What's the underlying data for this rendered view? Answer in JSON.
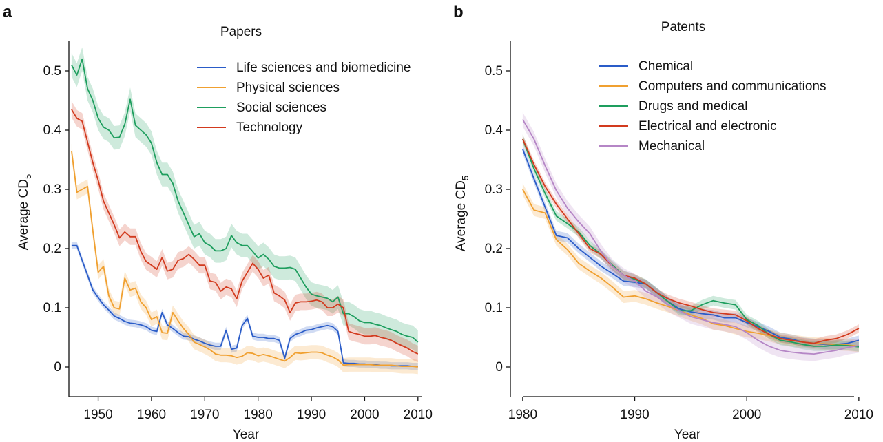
{
  "chart_data": [
    {
      "panel": "a",
      "type": "line",
      "title": "Papers",
      "xlabel": "Year",
      "ylabel_main": "Average CD",
      "ylabel_sub": "5",
      "xlim": [
        1944.5,
        2010.8
      ],
      "ylim": [
        -0.05,
        0.55
      ],
      "xticks": [
        1950,
        1960,
        1970,
        1980,
        1990,
        2000,
        2010
      ],
      "yticks": [
        0,
        0.1,
        0.2,
        0.3,
        0.4,
        0.5
      ],
      "ytick_labels": [
        "0",
        "0.1",
        "0.2",
        "0.3",
        "0.4",
        "0.5"
      ],
      "legend_position": "top-right",
      "series": [
        {
          "name": "Life sciences and biomedicine",
          "color": "#2a5cc8",
          "band": 0.006,
          "x": [
            1945,
            1946,
            1947,
            1948,
            1949,
            1950,
            1951,
            1952,
            1953,
            1954,
            1955,
            1956,
            1957,
            1958,
            1959,
            1960,
            1961,
            1962,
            1963,
            1964,
            1965,
            1966,
            1967,
            1968,
            1969,
            1970,
            1971,
            1972,
            1973,
            1974,
            1975,
            1976,
            1977,
            1978,
            1979,
            1980,
            1981,
            1982,
            1983,
            1984,
            1985,
            1986,
            1987,
            1988,
            1989,
            1990,
            1991,
            1992,
            1993,
            1994,
            1995,
            1996,
            1997,
            1998,
            1999,
            2000,
            2001,
            2002,
            2003,
            2004,
            2005,
            2006,
            2007,
            2008,
            2009,
            2010
          ],
          "y": [
            0.205,
            0.205,
            0.18,
            0.155,
            0.13,
            0.117,
            0.105,
            0.096,
            0.086,
            0.082,
            0.077,
            0.074,
            0.073,
            0.071,
            0.068,
            0.062,
            0.06,
            0.092,
            0.071,
            0.065,
            0.058,
            0.052,
            0.051,
            0.047,
            0.044,
            0.04,
            0.037,
            0.035,
            0.035,
            0.062,
            0.03,
            0.032,
            0.07,
            0.082,
            0.052,
            0.05,
            0.05,
            0.048,
            0.048,
            0.045,
            0.015,
            0.048,
            0.055,
            0.058,
            0.062,
            0.063,
            0.066,
            0.068,
            0.07,
            0.068,
            0.06,
            0.007,
            0.006,
            0.006,
            0.005,
            0.005,
            0.004,
            0.004,
            0.003,
            0.003,
            0.002,
            0.002,
            0.002,
            0.002,
            0.001,
            0.001
          ]
        },
        {
          "name": "Physical sciences",
          "color": "#f0a030",
          "band": 0.012,
          "x": [
            1945,
            1946,
            1947,
            1948,
            1949,
            1950,
            1951,
            1952,
            1953,
            1954,
            1955,
            1956,
            1957,
            1958,
            1959,
            1960,
            1961,
            1962,
            1963,
            1964,
            1965,
            1966,
            1967,
            1968,
            1969,
            1970,
            1971,
            1972,
            1973,
            1974,
            1975,
            1976,
            1977,
            1978,
            1979,
            1980,
            1981,
            1982,
            1983,
            1984,
            1985,
            1986,
            1987,
            1988,
            1989,
            1990,
            1991,
            1992,
            1993,
            1994,
            1995,
            1996,
            1997,
            1998,
            1999,
            2000,
            2001,
            2002,
            2003,
            2004,
            2005,
            2006,
            2007,
            2008,
            2009,
            2010
          ],
          "y": [
            0.365,
            0.295,
            0.3,
            0.305,
            0.23,
            0.16,
            0.17,
            0.12,
            0.1,
            0.098,
            0.15,
            0.13,
            0.133,
            0.11,
            0.1,
            0.08,
            0.085,
            0.058,
            0.057,
            0.092,
            0.078,
            0.065,
            0.055,
            0.042,
            0.038,
            0.034,
            0.029,
            0.022,
            0.02,
            0.02,
            0.019,
            0.016,
            0.018,
            0.024,
            0.023,
            0.019,
            0.021,
            0.019,
            0.016,
            0.013,
            0.01,
            0.016,
            0.024,
            0.023,
            0.024,
            0.025,
            0.025,
            0.024,
            0.02,
            0.017,
            0.012,
            0.003,
            0.004,
            0.004,
            0.004,
            0.004,
            0.004,
            0.003,
            0.003,
            0.003,
            0.003,
            0.002,
            0.001,
            0.001,
            0.001,
            0.0
          ]
        },
        {
          "name": "Social sciences",
          "color": "#1e9e5e",
          "band": 0.02,
          "x": [
            1945,
            1946,
            1947,
            1948,
            1949,
            1950,
            1951,
            1952,
            1953,
            1954,
            1955,
            1956,
            1957,
            1958,
            1959,
            1960,
            1961,
            1962,
            1963,
            1964,
            1965,
            1966,
            1967,
            1968,
            1969,
            1970,
            1971,
            1972,
            1973,
            1974,
            1975,
            1976,
            1977,
            1978,
            1979,
            1980,
            1981,
            1982,
            1983,
            1984,
            1985,
            1986,
            1987,
            1988,
            1989,
            1990,
            1991,
            1992,
            1993,
            1994,
            1995,
            1996,
            1997,
            1998,
            1999,
            2000,
            2001,
            2002,
            2003,
            2004,
            2005,
            2006,
            2007,
            2008,
            2009,
            2010
          ],
          "y": [
            0.51,
            0.493,
            0.52,
            0.47,
            0.45,
            0.42,
            0.405,
            0.4,
            0.387,
            0.388,
            0.41,
            0.452,
            0.408,
            0.4,
            0.392,
            0.378,
            0.345,
            0.325,
            0.325,
            0.31,
            0.28,
            0.26,
            0.24,
            0.22,
            0.225,
            0.21,
            0.205,
            0.196,
            0.196,
            0.2,
            0.222,
            0.21,
            0.205,
            0.205,
            0.195,
            0.184,
            0.19,
            0.182,
            0.17,
            0.167,
            0.167,
            0.168,
            0.165,
            0.15,
            0.135,
            0.123,
            0.12,
            0.118,
            0.116,
            0.11,
            0.118,
            0.09,
            0.09,
            0.085,
            0.078,
            0.075,
            0.075,
            0.072,
            0.07,
            0.066,
            0.063,
            0.06,
            0.055,
            0.052,
            0.05,
            0.042
          ]
        },
        {
          "name": "Technology",
          "color": "#d23a1e",
          "band": 0.014,
          "x": [
            1945,
            1946,
            1947,
            1948,
            1949,
            1950,
            1951,
            1952,
            1953,
            1954,
            1955,
            1956,
            1957,
            1958,
            1959,
            1960,
            1961,
            1962,
            1963,
            1964,
            1965,
            1966,
            1967,
            1968,
            1969,
            1970,
            1971,
            1972,
            1973,
            1974,
            1975,
            1976,
            1977,
            1978,
            1979,
            1980,
            1981,
            1982,
            1983,
            1984,
            1985,
            1986,
            1987,
            1988,
            1989,
            1990,
            1991,
            1992,
            1993,
            1994,
            1995,
            1996,
            1997,
            1998,
            1999,
            2000,
            2001,
            2002,
            2003,
            2004,
            2005,
            2006,
            2007,
            2008,
            2009,
            2010
          ],
          "y": [
            0.435,
            0.42,
            0.415,
            0.38,
            0.345,
            0.315,
            0.28,
            0.26,
            0.24,
            0.218,
            0.228,
            0.22,
            0.22,
            0.195,
            0.178,
            0.172,
            0.165,
            0.185,
            0.162,
            0.165,
            0.18,
            0.183,
            0.19,
            0.182,
            0.172,
            0.172,
            0.145,
            0.143,
            0.128,
            0.135,
            0.132,
            0.115,
            0.145,
            0.16,
            0.175,
            0.165,
            0.15,
            0.155,
            0.125,
            0.12,
            0.113,
            0.092,
            0.108,
            0.11,
            0.11,
            0.111,
            0.113,
            0.11,
            0.1,
            0.1,
            0.106,
            0.1,
            0.06,
            0.057,
            0.055,
            0.052,
            0.052,
            0.053,
            0.05,
            0.048,
            0.045,
            0.04,
            0.036,
            0.032,
            0.026,
            0.022
          ]
        }
      ]
    },
    {
      "panel": "b",
      "type": "line",
      "title": "Patents",
      "xlabel": "Year",
      "ylabel_main": "Average CD",
      "ylabel_sub": "5",
      "xlim": [
        1978.9,
        2010.5
      ],
      "ylim": [
        -0.05,
        0.55
      ],
      "xticks": [
        1980,
        1990,
        2000,
        2010
      ],
      "yticks": [
        0,
        0.1,
        0.2,
        0.3,
        0.4,
        0.5
      ],
      "ytick_labels": [
        "0",
        "0.1",
        "0.2",
        "0.3",
        "0.4",
        "0.5"
      ],
      "legend_position": "top-right",
      "series": [
        {
          "name": "Chemical",
          "color": "#2a5cc8",
          "band": 0.008,
          "x": [
            1980,
            1981,
            1982,
            1983,
            1984,
            1985,
            1986,
            1987,
            1988,
            1989,
            1990,
            1991,
            1992,
            1993,
            1994,
            1995,
            1996,
            1997,
            1998,
            1999,
            2000,
            2001,
            2002,
            2003,
            2004,
            2005,
            2006,
            2007,
            2008,
            2009,
            2010
          ],
          "y": [
            0.368,
            0.318,
            0.27,
            0.222,
            0.218,
            0.2,
            0.185,
            0.17,
            0.158,
            0.145,
            0.143,
            0.14,
            0.125,
            0.11,
            0.098,
            0.093,
            0.09,
            0.088,
            0.083,
            0.083,
            0.075,
            0.068,
            0.06,
            0.05,
            0.047,
            0.042,
            0.04,
            0.038,
            0.038,
            0.04,
            0.045
          ]
        },
        {
          "name": "Computers and communications",
          "color": "#f0a030",
          "band": 0.01,
          "x": [
            1980,
            1981,
            1982,
            1983,
            1984,
            1985,
            1986,
            1987,
            1988,
            1989,
            1990,
            1991,
            1992,
            1993,
            1994,
            1995,
            1996,
            1997,
            1998,
            1999,
            2000,
            2001,
            2002,
            2003,
            2004,
            2005,
            2006,
            2007,
            2008,
            2009,
            2010
          ],
          "y": [
            0.3,
            0.265,
            0.26,
            0.215,
            0.198,
            0.175,
            0.162,
            0.15,
            0.135,
            0.118,
            0.12,
            0.115,
            0.108,
            0.102,
            0.095,
            0.088,
            0.082,
            0.073,
            0.07,
            0.065,
            0.06,
            0.057,
            0.053,
            0.048,
            0.045,
            0.042,
            0.04,
            0.039,
            0.038,
            0.037,
            0.035
          ]
        },
        {
          "name": "Drugs and medical",
          "color": "#1e9e5e",
          "band": 0.008,
          "x": [
            1980,
            1981,
            1982,
            1983,
            1984,
            1985,
            1986,
            1987,
            1988,
            1989,
            1990,
            1991,
            1992,
            1993,
            1994,
            1995,
            1996,
            1997,
            1998,
            1999,
            2000,
            2001,
            2002,
            2003,
            2004,
            2005,
            2006,
            2007,
            2008,
            2009,
            2010
          ],
          "y": [
            0.385,
            0.335,
            0.293,
            0.255,
            0.242,
            0.228,
            0.205,
            0.19,
            0.172,
            0.155,
            0.148,
            0.14,
            0.125,
            0.11,
            0.095,
            0.095,
            0.105,
            0.112,
            0.108,
            0.105,
            0.08,
            0.07,
            0.055,
            0.045,
            0.042,
            0.038,
            0.035,
            0.035,
            0.037,
            0.036,
            0.034
          ]
        },
        {
          "name": "Electrical and electronic",
          "color": "#d23a1e",
          "band": 0.007,
          "x": [
            1980,
            1981,
            1982,
            1983,
            1984,
            1985,
            1986,
            1987,
            1988,
            1989,
            1990,
            1991,
            1992,
            1993,
            1994,
            1995,
            1996,
            1997,
            1998,
            1999,
            2000,
            2001,
            2002,
            2003,
            2004,
            2005,
            2006,
            2007,
            2008,
            2009,
            2010
          ],
          "y": [
            0.385,
            0.342,
            0.305,
            0.275,
            0.25,
            0.225,
            0.2,
            0.19,
            0.17,
            0.155,
            0.15,
            0.14,
            0.125,
            0.115,
            0.108,
            0.103,
            0.097,
            0.092,
            0.09,
            0.088,
            0.078,
            0.065,
            0.055,
            0.048,
            0.045,
            0.042,
            0.04,
            0.045,
            0.048,
            0.055,
            0.065
          ]
        },
        {
          "name": "Mechanical",
          "color": "#b586c6",
          "band": 0.012,
          "x": [
            1980,
            1981,
            1982,
            1983,
            1984,
            1985,
            1986,
            1987,
            1988,
            1989,
            1990,
            1991,
            1992,
            1993,
            1994,
            1995,
            1996,
            1997,
            1998,
            1999,
            2000,
            2001,
            2002,
            2003,
            2004,
            2005,
            2006,
            2007,
            2008,
            2009,
            2010
          ],
          "y": [
            0.418,
            0.385,
            0.34,
            0.298,
            0.268,
            0.245,
            0.225,
            0.195,
            0.17,
            0.155,
            0.145,
            0.128,
            0.118,
            0.105,
            0.095,
            0.085,
            0.08,
            0.075,
            0.072,
            0.068,
            0.058,
            0.045,
            0.035,
            0.028,
            0.025,
            0.023,
            0.022,
            0.025,
            0.028,
            0.033,
            0.036
          ]
        }
      ]
    }
  ]
}
